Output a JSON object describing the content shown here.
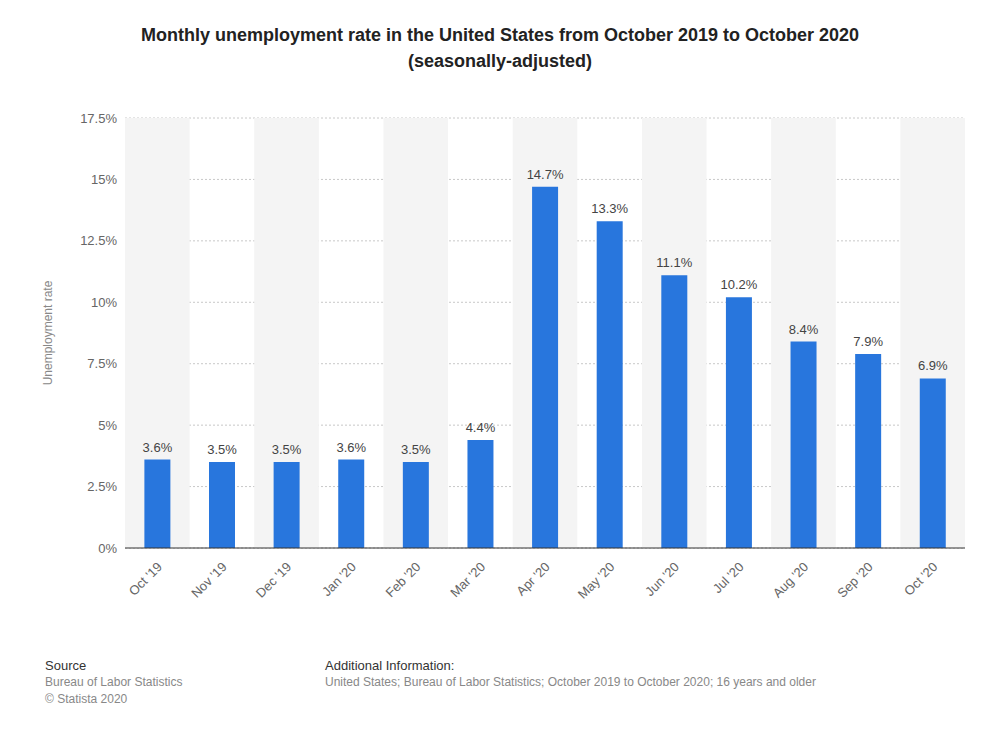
{
  "chart_data": {
    "type": "bar",
    "title": "Monthly unemployment rate in the United States from October 2019 to October 2020",
    "subtitle": "(seasonally-adjusted)",
    "y_label": "Unemployment rate",
    "categories": [
      "Oct '19",
      "Nov '19",
      "Dec '19",
      "Jan '20",
      "Feb '20",
      "Mar '20",
      "Apr '20",
      "May '20",
      "Jun '20",
      "Jul '20",
      "Aug '20",
      "Sep '20",
      "Oct '20"
    ],
    "values": [
      3.6,
      3.5,
      3.5,
      3.6,
      3.5,
      4.4,
      14.7,
      13.3,
      11.1,
      10.2,
      8.4,
      7.9,
      6.9
    ],
    "value_labels": [
      "3.6%",
      "3.5%",
      "3.5%",
      "3.6%",
      "3.5%",
      "4.4%",
      "14.7%",
      "13.3%",
      "11.1%",
      "10.2%",
      "8.4%",
      "7.9%",
      "6.9%"
    ],
    "color": "#2876dd",
    "ylim": [
      0,
      17.5
    ],
    "yticks": [
      {
        "value": 0,
        "label": "0%"
      },
      {
        "value": 2.5,
        "label": "2.5%"
      },
      {
        "value": 5,
        "label": "5%"
      },
      {
        "value": 7.5,
        "label": "7.5%"
      },
      {
        "value": 10,
        "label": "10%"
      },
      {
        "value": 12.5,
        "label": "12.5%"
      },
      {
        "value": 15,
        "label": "15%"
      },
      {
        "value": 17.5,
        "label": "17.5%"
      }
    ],
    "grid": true,
    "data_labels": true,
    "source_heading": "Source",
    "source_lines": [
      "Bureau of Labor Statistics",
      "© Statista 2020"
    ],
    "info_heading": "Additional Information:",
    "info_text": "United States; Bureau of Labor Statistics; October 2019 to October 2020; 16 years and older"
  }
}
